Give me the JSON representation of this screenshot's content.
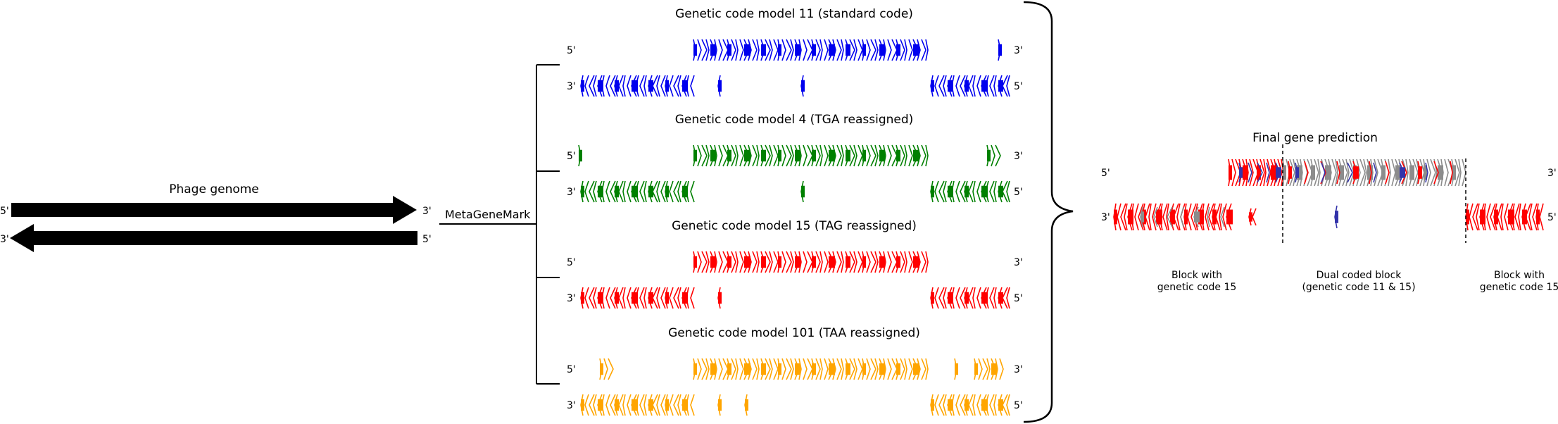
{
  "phage": {
    "title": "Phage genome",
    "top_left": "5'",
    "top_right": "3'",
    "bottom_left": "3'",
    "bottom_right": "5'"
  },
  "tool": "MetaGeneMark",
  "models": [
    {
      "title": "Genetic code model 11 (standard code)",
      "color": "#0000ee",
      "fwd_left": "5'",
      "fwd_right": "3'",
      "rev_left": "3'",
      "rev_right": "5'"
    },
    {
      "title": "Genetic code model 4 (TGA reassigned)",
      "color": "#008000",
      "fwd_left": "5'",
      "fwd_right": "3'",
      "rev_left": "3'",
      "rev_right": "5'"
    },
    {
      "title": "Genetic code model 15 (TAG reassigned)",
      "color": "#ff0000",
      "fwd_left": "5'",
      "fwd_right": "3'",
      "rev_left": "3'",
      "rev_right": "5'"
    },
    {
      "title": "Genetic code model 101 (TAA reassigned)",
      "color": "#ffa500",
      "fwd_left": "5'",
      "fwd_right": "3'",
      "rev_left": "3'",
      "rev_right": "5'"
    }
  ],
  "final": {
    "title": "Final gene prediction",
    "fwd_left": "5'",
    "fwd_right": "3'",
    "rev_left": "3'",
    "rev_right": "5'",
    "colors": {
      "red": "#ff0000",
      "gray": "#8c8c8c",
      "blue": "#3333aa"
    },
    "blocks": [
      {
        "line1": "Block with",
        "line2": "genetic code 15"
      },
      {
        "line1": "Dual coded block",
        "line2": "(genetic code 11 & 15)"
      },
      {
        "line1": "Block with",
        "line2": "genetic code 15"
      }
    ]
  },
  "arrow_color": "#000000"
}
